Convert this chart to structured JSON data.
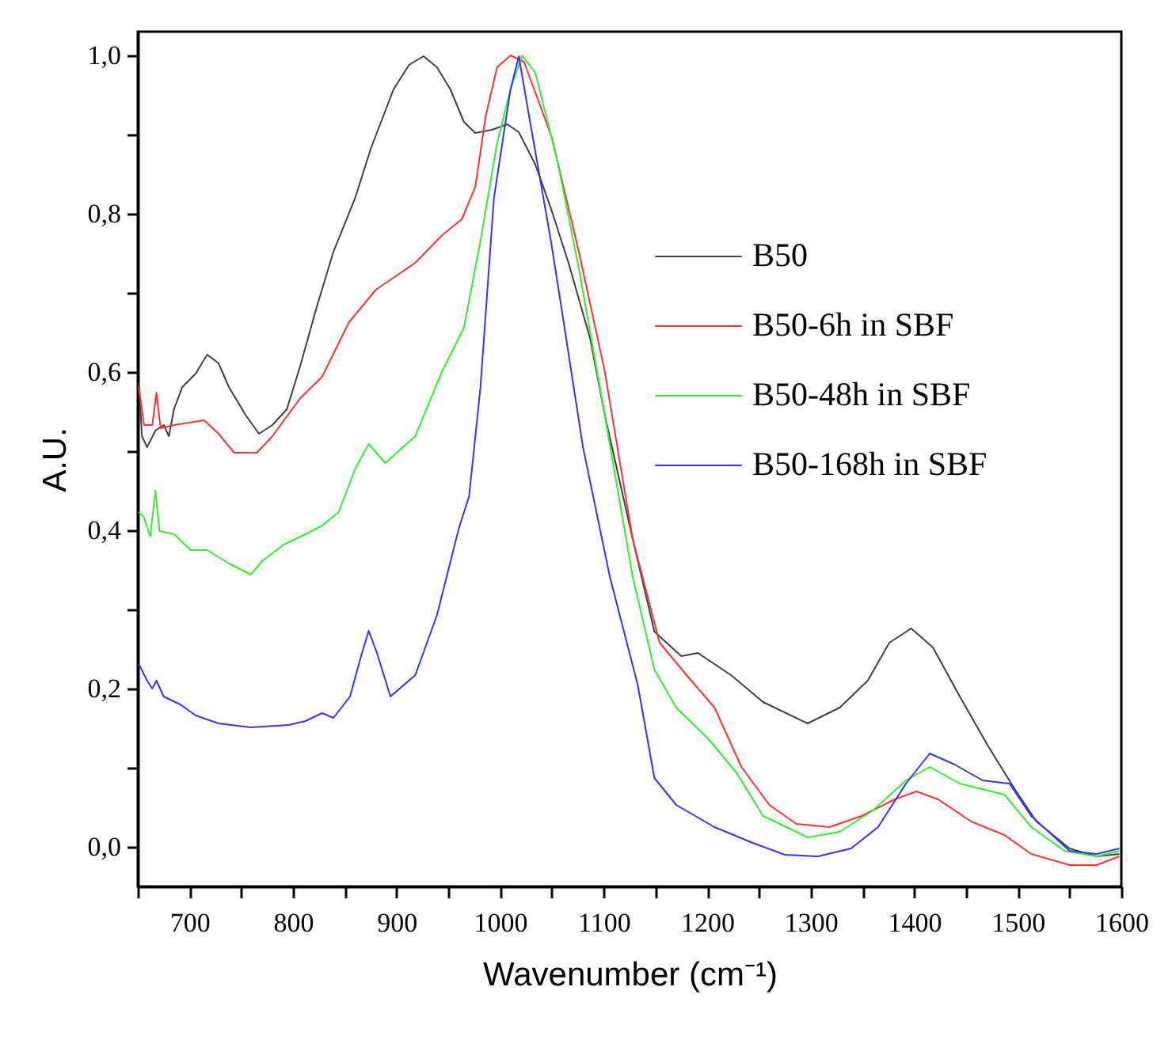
{
  "chart_data": {
    "type": "line",
    "xlabel": "Wavenumber (cm⁻¹)",
    "ylabel": "A.U.",
    "xlim": [
      650,
      1600
    ],
    "ylim": [
      -0.05,
      1.03
    ],
    "xticks": [
      {
        "value": 650,
        "label": null
      },
      700,
      {
        "value": 750,
        "label": null
      },
      800,
      {
        "value": 850,
        "label": null
      },
      900,
      {
        "value": 950,
        "label": null
      },
      1000,
      {
        "value": 1050,
        "label": null
      },
      1100,
      {
        "value": 1150,
        "label": null
      },
      1200,
      {
        "value": 1250,
        "label": null
      },
      1300,
      {
        "value": 1350,
        "label": null
      },
      1400,
      {
        "value": 1450,
        "label": null
      },
      1500,
      {
        "value": 1550,
        "label": null
      },
      1600
    ],
    "yticks": [
      {
        "value": 0,
        "label": "0,0"
      },
      {
        "value": 0.1,
        "label": null
      },
      {
        "value": 0.2,
        "label": "0,2"
      },
      {
        "value": 0.3,
        "label": null
      },
      {
        "value": 0.4,
        "label": "0,4"
      },
      {
        "value": 0.5,
        "label": null
      },
      {
        "value": 0.6,
        "label": "0,6"
      },
      {
        "value": 0.7,
        "label": null
      },
      {
        "value": 0.8,
        "label": "0,8"
      },
      {
        "value": 0.9,
        "label": null
      },
      {
        "value": 1.0,
        "label": "1,0"
      }
    ],
    "legend": "top right",
    "series": [
      {
        "name": "B50",
        "color": "#404040",
        "x": [
          651,
          654,
          659,
          667,
          675,
          680,
          685,
          693,
          706,
          717,
          728,
          738,
          754,
          767,
          780,
          794,
          807,
          823,
          839,
          860,
          875,
          897,
          912,
          926,
          939,
          952,
          965,
          976,
          992,
          1007,
          1018,
          1034,
          1049,
          1066,
          1087,
          1101,
          1128,
          1149,
          1175,
          1191,
          1223,
          1254,
          1297,
          1328,
          1355,
          1376,
          1397,
          1418,
          1444,
          1471,
          1497,
          1518,
          1550,
          1576,
          1598
        ],
        "values": [
          0.587,
          0.519,
          0.505,
          0.526,
          0.533,
          0.519,
          0.553,
          0.581,
          0.598,
          0.622,
          0.611,
          0.581,
          0.546,
          0.522,
          0.533,
          0.553,
          0.608,
          0.683,
          0.752,
          0.82,
          0.882,
          0.957,
          0.988,
          0.999,
          0.985,
          0.957,
          0.916,
          0.902,
          0.906,
          0.913,
          0.903,
          0.862,
          0.807,
          0.738,
          0.642,
          0.546,
          0.389,
          0.272,
          0.241,
          0.245,
          0.217,
          0.183,
          0.156,
          0.176,
          0.21,
          0.258,
          0.276,
          0.252,
          0.19,
          0.128,
          0.073,
          0.032,
          -0.002,
          -0.012,
          -0.009
        ]
      },
      {
        "name": "B50-6h in SBF",
        "color": "#ff3333",
        "x": [
          651,
          656,
          664,
          668,
          672,
          685,
          714,
          728,
          743,
          765,
          780,
          807,
          828,
          854,
          880,
          918,
          944,
          963,
          976,
          986,
          997,
          1010,
          1023,
          1050,
          1076,
          1101,
          1128,
          1154,
          1180,
          1207,
          1233,
          1260,
          1286,
          1318,
          1349,
          1381,
          1402,
          1423,
          1455,
          1487,
          1513,
          1550,
          1576,
          1598
        ],
        "values": [
          0.581,
          0.533,
          0.533,
          0.574,
          0.529,
          0.533,
          0.539,
          0.522,
          0.498,
          0.498,
          0.519,
          0.567,
          0.594,
          0.663,
          0.704,
          0.738,
          0.773,
          0.793,
          0.834,
          0.923,
          0.985,
          1.0,
          0.992,
          0.896,
          0.752,
          0.601,
          0.389,
          0.258,
          0.217,
          0.176,
          0.101,
          0.053,
          0.029,
          0.025,
          0.039,
          0.06,
          0.07,
          0.06,
          0.032,
          0.015,
          -0.009,
          -0.023,
          -0.023,
          -0.012
        ]
      },
      {
        "name": "B50-48h in SBF",
        "color": "#33ee33",
        "x": [
          651,
          656,
          662,
          667,
          671,
          685,
          701,
          717,
          738,
          759,
          770,
          791,
          812,
          828,
          844,
          860,
          873,
          889,
          918,
          944,
          965,
          981,
          997,
          1010,
          1021,
          1034,
          1055,
          1076,
          1101,
          1128,
          1149,
          1170,
          1202,
          1228,
          1254,
          1297,
          1328,
          1360,
          1392,
          1415,
          1444,
          1487,
          1513,
          1545,
          1576,
          1598
        ],
        "values": [
          0.423,
          0.416,
          0.392,
          0.45,
          0.399,
          0.395,
          0.375,
          0.375,
          0.358,
          0.344,
          0.361,
          0.382,
          0.395,
          0.406,
          0.423,
          0.478,
          0.509,
          0.485,
          0.519,
          0.601,
          0.656,
          0.766,
          0.889,
          0.957,
          1.0,
          0.978,
          0.868,
          0.731,
          0.546,
          0.341,
          0.224,
          0.176,
          0.135,
          0.094,
          0.039,
          0.012,
          0.019,
          0.046,
          0.084,
          0.101,
          0.08,
          0.066,
          0.025,
          -0.005,
          -0.012,
          -0.005
        ]
      },
      {
        "name": "B50-168h in SBF",
        "color": "#3333ff",
        "x": [
          651,
          659,
          664,
          668,
          675,
          691,
          706,
          728,
          759,
          796,
          812,
          828,
          839,
          855,
          865,
          873,
          881,
          894,
          918,
          939,
          960,
          970,
          981,
          994,
          1010,
          1018,
          1028,
          1049,
          1059,
          1080,
          1106,
          1133,
          1149,
          1170,
          1207,
          1244,
          1275,
          1307,
          1339,
          1365,
          1392,
          1415,
          1439,
          1466,
          1492,
          1513,
          1550,
          1576,
          1598
        ],
        "values": [
          0.231,
          0.21,
          0.2,
          0.21,
          0.19,
          0.18,
          0.166,
          0.156,
          0.151,
          0.154,
          0.159,
          0.169,
          0.163,
          0.19,
          0.238,
          0.273,
          0.245,
          0.19,
          0.217,
          0.293,
          0.402,
          0.443,
          0.581,
          0.82,
          0.957,
          0.999,
          0.923,
          0.766,
          0.683,
          0.505,
          0.341,
          0.204,
          0.087,
          0.053,
          0.025,
          0.005,
          -0.01,
          -0.012,
          -0.002,
          0.025,
          0.08,
          0.118,
          0.104,
          0.084,
          0.08,
          0.039,
          -0.005,
          -0.009,
          -0.002
        ]
      }
    ]
  }
}
